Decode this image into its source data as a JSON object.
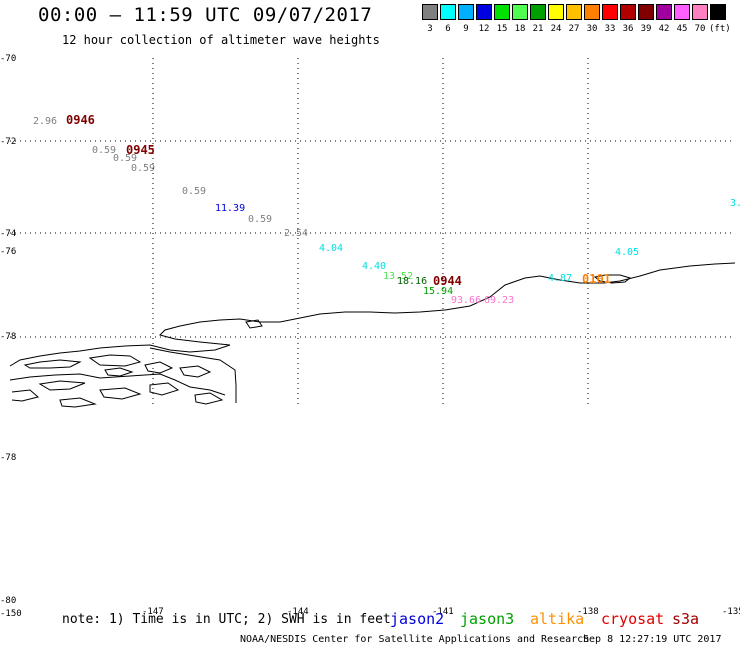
{
  "header": {
    "title": "00:00 – 11:59 UTC 09/07/2017",
    "subtitle": "12 hour collection of altimeter wave heights"
  },
  "color_scale": {
    "colors": [
      "#808080",
      "#00ffff",
      "#00b0ff",
      "#0000e0",
      "#00e000",
      "#50ff50",
      "#00a000",
      "#ffff00",
      "#ffc000",
      "#ff8000",
      "#ff0000",
      "#b00000",
      "#800000",
      "#a000a0",
      "#ff60ff",
      "#ff80c0",
      "#000000"
    ],
    "labels": [
      "3",
      "6",
      "9",
      "12",
      "15",
      "18",
      "21",
      "24",
      "27",
      "30",
      "33",
      "36",
      "39",
      "42",
      "45",
      "70",
      "(ft)"
    ]
  },
  "axes": {
    "lat_labels_left": [
      "-70",
      "-72",
      "-74",
      "-76",
      "-78",
      "-78",
      "-80"
    ],
    "lat_right_label": "3.",
    "lon_labels": [
      "-150",
      "-147",
      "-144",
      "-141",
      "-138",
      "-135"
    ]
  },
  "observations": [
    {
      "text": "2.96",
      "color": "#808080"
    },
    {
      "text": "0.59",
      "color": "#808080"
    },
    {
      "text": "0.59",
      "color": "#808080"
    },
    {
      "text": "0.59",
      "color": "#808080"
    },
    {
      "text": "0.59",
      "color": "#808080"
    },
    {
      "text": "11.39",
      "color": "#0000e0"
    },
    {
      "text": "0.59",
      "color": "#808080"
    },
    {
      "text": "2.54",
      "color": "#808080"
    },
    {
      "text": "4.04",
      "color": "#00e0e0"
    },
    {
      "text": "4.40",
      "color": "#00e0e0"
    },
    {
      "text": "13.52",
      "color": "#50e050"
    },
    {
      "text": "18.16",
      "color": "#006000"
    },
    {
      "text": "15.94",
      "color": "#00a000"
    },
    {
      "text": "93.66",
      "color": "#ff70d0"
    },
    {
      "text": "69.23",
      "color": "#ff70d0"
    },
    {
      "text": "4.87",
      "color": "#00e0e0"
    },
    {
      "text": "4.05",
      "color": "#00e0e0"
    }
  ],
  "pass_times": [
    {
      "text": "0946",
      "color": "#800000"
    },
    {
      "text": "0945",
      "color": "#800000"
    },
    {
      "text": "0944",
      "color": "#800000"
    },
    {
      "text": "0101",
      "color": "#ff8000"
    }
  ],
  "footer": {
    "note": "note: 1) Time is in UTC; 2) SWH is in feet",
    "satellites": [
      {
        "name": "jason2",
        "color": "#0000e0"
      },
      {
        "name": "jason3",
        "color": "#00a000"
      },
      {
        "name": "altika",
        "color": "#ff9000"
      },
      {
        "name": "cryosat",
        "color": "#e00000"
      },
      {
        "name": "s3a",
        "color": "#a00000"
      }
    ],
    "credit": "NOAA/NESDIS Center for Satellite Applications and Research",
    "generated": "Sep  8 12:27:19 UTC 2017"
  }
}
